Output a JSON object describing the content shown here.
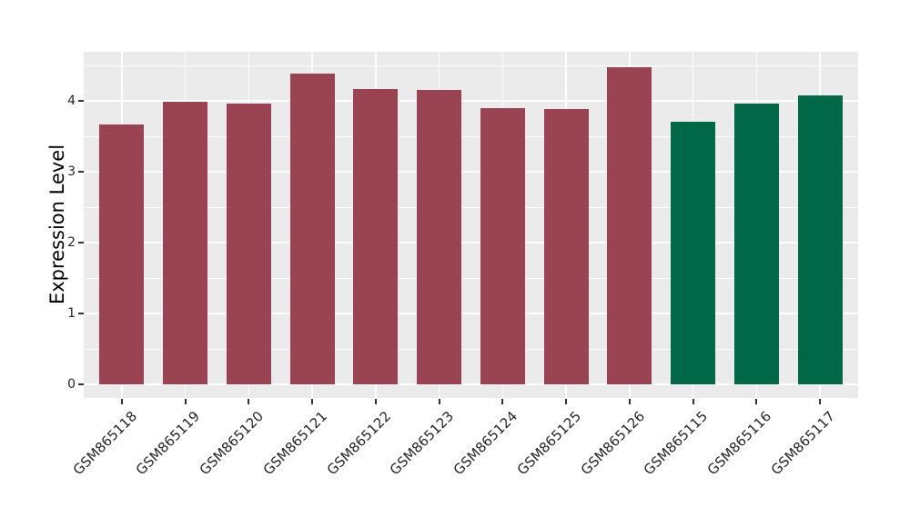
{
  "chart_data": {
    "type": "bar",
    "title": "",
    "xlabel": "",
    "ylabel": "Expression Level",
    "categories": [
      "GSM865118",
      "GSM865119",
      "GSM865120",
      "GSM865121",
      "GSM865122",
      "GSM865123",
      "GSM865124",
      "GSM865125",
      "GSM865126",
      "GSM865115",
      "GSM865116",
      "GSM865117"
    ],
    "values": [
      3.67,
      3.99,
      3.96,
      4.38,
      4.17,
      4.15,
      3.9,
      3.88,
      4.47,
      3.7,
      3.96,
      4.08
    ],
    "bar_colors": [
      "#9A4352",
      "#9A4352",
      "#9A4352",
      "#9A4352",
      "#9A4352",
      "#9A4352",
      "#9A4352",
      "#9A4352",
      "#9A4352",
      "#006747",
      "#006747",
      "#006747"
    ],
    "group_colors": {
      "red_group": "#9A4352",
      "green_group": "#006747"
    },
    "yticks": [
      0,
      1,
      2,
      3,
      4
    ],
    "ylim": [
      -0.21,
      4.69
    ],
    "bar_width_fraction": 0.7,
    "legend": "none",
    "grid": "on",
    "style": {
      "panel_background": "#EBEBEB",
      "grid_color": "#FFFFFF",
      "tick_color": "#333333",
      "tick_label_color": "#262626",
      "figure_background": "#FFFFFF"
    }
  }
}
